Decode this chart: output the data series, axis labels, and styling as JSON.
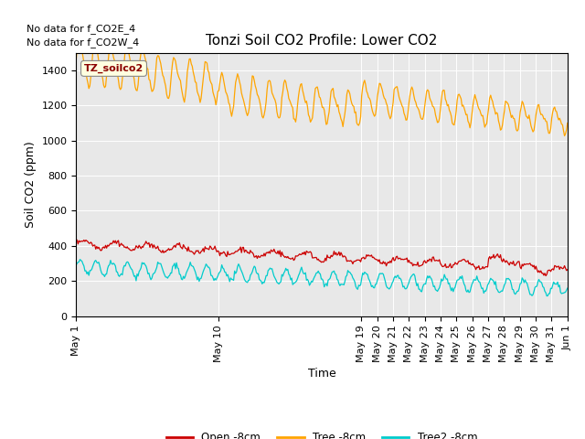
{
  "title": "Tonzi Soil CO2 Profile: Lower CO2",
  "ylabel": "Soil CO2 (ppm)",
  "xlabel": "Time",
  "no_data_text": [
    "No data for f_CO2E_4",
    "No data for f_CO2W_4"
  ],
  "annotation_label": "TZ_soilco2",
  "x_tick_labels": [
    "May 1",
    "May 10",
    "May 19",
    "May 20",
    "May 21",
    "May 22",
    "May 23",
    "May 24",
    "May 25",
    "May 26",
    "May 27",
    "May 28",
    "May 29",
    "May 30",
    "May 31",
    "Jun 1"
  ],
  "x_tick_positions": [
    0,
    9,
    18,
    19,
    20,
    21,
    22,
    23,
    24,
    25,
    26,
    27,
    28,
    29,
    30,
    31
  ],
  "ylim": [
    0,
    1500
  ],
  "yticks": [
    0,
    200,
    400,
    600,
    800,
    1000,
    1200,
    1400
  ],
  "bg_color": "#e8e8e8",
  "line_colors": {
    "open": "#cc0000",
    "tree": "#ffa500",
    "tree2": "#00cccc"
  },
  "legend_entries": [
    "Open -8cm",
    "Tree -8cm",
    "Tree2 -8cm"
  ],
  "title_fontsize": 11,
  "axis_fontsize": 9,
  "tick_fontsize": 8,
  "annotation_fontsize": 8
}
